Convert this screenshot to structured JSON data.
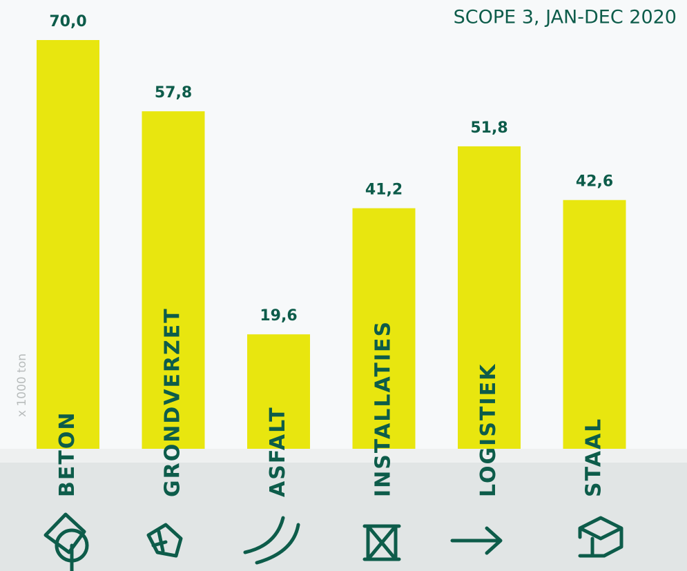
{
  "chart_data": {
    "type": "bar",
    "title": "SCOPE 3, JAN-DEC 2020",
    "unit_label": "x 1000 ton",
    "categories": [
      "BETON",
      "GRONDVERZET",
      "ASFALT",
      "INSTALLATIES",
      "LOGISTIEK",
      "STAAL"
    ],
    "values": [
      70.0,
      57.8,
      19.6,
      41.2,
      51.8,
      42.6
    ],
    "value_labels": [
      "70,0",
      "57,8",
      "19,6",
      "41,2",
      "51,8",
      "42,6"
    ],
    "color": "#e8e60f"
  }
}
